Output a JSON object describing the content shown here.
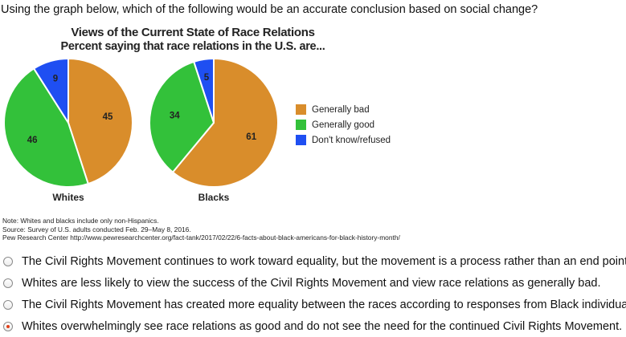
{
  "question": "Using the graph below, which of the following would be an accurate conclusion based on social change?",
  "chart": {
    "title": "Views of the Current State of Race Relations",
    "subtitle": "Percent saying that race relations in the U.S. are...",
    "legend": [
      {
        "label": "Generally bad",
        "color": "#d98d2b"
      },
      {
        "label": "Generally good",
        "color": "#33c13a"
      },
      {
        "label": "Don't know/refused",
        "color": "#1f4ff2"
      }
    ],
    "notes": [
      "Note: Whites and blacks include only non-Hispanics.",
      "Source: Survey of U.S. adults conducted Feb. 29–May 8, 2016.",
      "Pew Research Center http://www.pewresearchcenter.org/fact-tank/2017/02/22/6-facts-about-black-americans-for-black-history-month/"
    ]
  },
  "chart_data": [
    {
      "type": "pie",
      "title": "Whites",
      "categories": [
        "Generally bad",
        "Generally good",
        "Don't know/refused"
      ],
      "values": [
        45,
        46,
        9
      ],
      "colors": [
        "#d98d2b",
        "#33c13a",
        "#1f4ff2"
      ]
    },
    {
      "type": "pie",
      "title": "Blacks",
      "categories": [
        "Generally bad",
        "Generally good",
        "Don't know/refused"
      ],
      "values": [
        61,
        34,
        5
      ],
      "colors": [
        "#d98d2b",
        "#33c13a",
        "#1f4ff2"
      ]
    }
  ],
  "options": [
    {
      "text": "The Civil Rights Movement continues to work toward equality, but the movement is a process rather than an end point.",
      "selected": false
    },
    {
      "text": "Whites are less likely to view the success of the Civil Rights Movement and view race relations as generally bad.",
      "selected": false
    },
    {
      "text": "The Civil Rights Movement has created more equality between the races according to responses from Black individuals.",
      "selected": false
    },
    {
      "text": "Whites overwhelmingly see race relations as good and do not see the need for the continued Civil Rights Movement.",
      "selected": true
    }
  ]
}
